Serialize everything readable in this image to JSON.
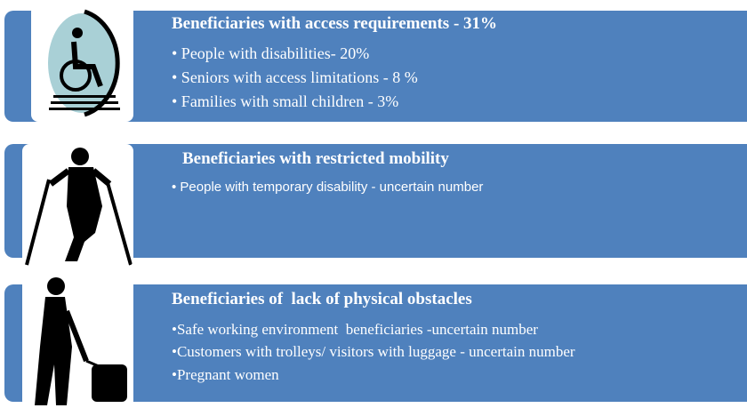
{
  "sections": [
    {
      "title": "Beneficiaries with access requirements - 31%",
      "items": [
        "• People with disabilities- 20%",
        "• Seniors with access limitations - 8 %",
        "• Families with small children - 3%"
      ]
    },
    {
      "title": "Beneficiaries with restricted mobility",
      "items": [
        "• People with temporary disability - uncertain number"
      ]
    },
    {
      "title": "Beneficiaries of  lack of physical obstacles",
      "items": [
        "•Safe working environment  beneficiaries -uncertain number",
        "•Customers with trolleys/ visitors with luggage - uncertain number",
        "•Pregnant women"
      ]
    }
  ]
}
